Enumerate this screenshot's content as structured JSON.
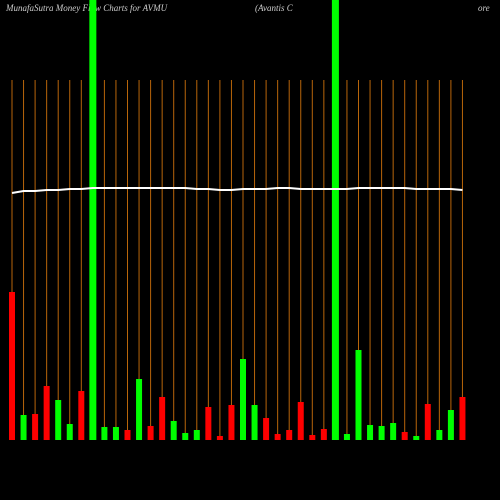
{
  "chart_data": {
    "type": "bar",
    "title": "MunafaSutra  Money Flow  Charts for AVMU",
    "subtitle": "(Avantis C",
    "annotation": "ore",
    "categories": [
      null,
      null,
      null,
      null,
      null,
      null,
      null,
      null,
      null,
      null,
      null,
      null,
      null,
      null,
      null,
      null,
      null,
      null,
      null,
      null,
      null,
      null,
      null,
      null,
      null,
      null,
      null,
      null,
      null,
      null,
      null,
      null,
      null,
      null,
      null,
      null,
      null,
      null,
      null,
      null
    ],
    "values": [
      148,
      25,
      26,
      54,
      40,
      16,
      49,
      440,
      13,
      13,
      10,
      61,
      14,
      43,
      19,
      7,
      10,
      33,
      4,
      35,
      81,
      35,
      22,
      6,
      10,
      38,
      5,
      11,
      440,
      6,
      90,
      15,
      14,
      17,
      8,
      4,
      36,
      10,
      30,
      43
    ],
    "colors": [
      "#ff0000",
      "#00ff00",
      "#ff0000",
      "#ff0000",
      "#00ff00",
      "#00ff00",
      "#ff0000",
      "#00ff00",
      "#00ff00",
      "#00ff00",
      "#ff0000",
      "#00ff00",
      "#ff0000",
      "#ff0000",
      "#00ff00",
      "#00ff00",
      "#00ff00",
      "#ff0000",
      "#ff0000",
      "#ff0000",
      "#00ff00",
      "#00ff00",
      "#ff0000",
      "#ff0000",
      "#ff0000",
      "#ff0000",
      "#ff0000",
      "#ff0000",
      "#00ff00",
      "#00ff00",
      "#00ff00",
      "#00ff00",
      "#00ff00",
      "#00ff00",
      "#ff0000",
      "#00ff00",
      "#ff0000",
      "#00ff00",
      "#00ff00",
      "#ff0000"
    ],
    "line": {
      "color": "#ffffff",
      "values": [
        247,
        249,
        249,
        250,
        250,
        251,
        251,
        252,
        252,
        252,
        252,
        252,
        252,
        252,
        252,
        252,
        251,
        251,
        250,
        250,
        251,
        251,
        251,
        252,
        252,
        251,
        251,
        251,
        251,
        251,
        252,
        252,
        252,
        252,
        252,
        251,
        251,
        251,
        251,
        250
      ]
    },
    "ylim": [
      0,
      440
    ],
    "grid_color": "#b8650a"
  }
}
